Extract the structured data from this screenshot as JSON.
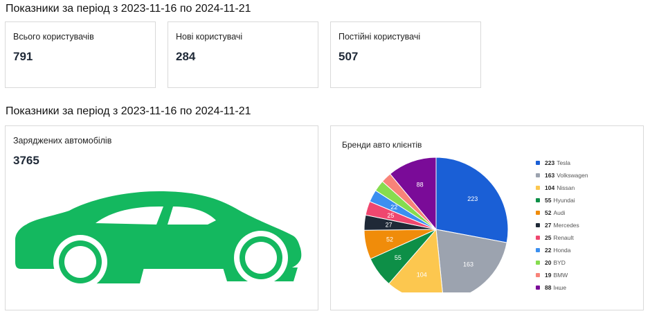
{
  "section1": {
    "title": "Показники за період з 2023-11-16 по 2024-11-21"
  },
  "stats": [
    {
      "label": "Всього користувачів",
      "value": "791"
    },
    {
      "label": "Нові користувачі",
      "value": "284"
    },
    {
      "label": "Постійні користувачі",
      "value": "507"
    }
  ],
  "section2": {
    "title": "Показники за період з 2023-11-16 по 2024-11-21"
  },
  "charged": {
    "label": "Заряджених автомобілів",
    "value": "3765",
    "icon": "car-icon",
    "icon_color": "#14b85f"
  },
  "brands": {
    "title": "Бренди авто клієнтів"
  },
  "chart_data": {
    "type": "pie",
    "title": "Бренди авто клієнтів",
    "legend_position": "right",
    "slices": [
      {
        "name": "Tesla",
        "value": 223,
        "color": "#1a5fd6"
      },
      {
        "name": "Volkswagen",
        "value": 163,
        "color": "#9ca3af"
      },
      {
        "name": "Nissan",
        "value": 104,
        "color": "#fcc74f"
      },
      {
        "name": "Hyundai",
        "value": 55,
        "color": "#0d8f47"
      },
      {
        "name": "Audi",
        "value": 52,
        "color": "#f08c0a"
      },
      {
        "name": "Mercedes",
        "value": 27,
        "color": "#1f2937"
      },
      {
        "name": "Renault",
        "value": 25,
        "color": "#ef476f"
      },
      {
        "name": "Honda",
        "value": 22,
        "color": "#3b8ff0"
      },
      {
        "name": "BYD",
        "value": 20,
        "color": "#86dc4f"
      },
      {
        "name": "BMW",
        "value": 19,
        "color": "#f88379"
      },
      {
        "name": "Інше",
        "value": 88,
        "color": "#7a0b98"
      }
    ]
  }
}
